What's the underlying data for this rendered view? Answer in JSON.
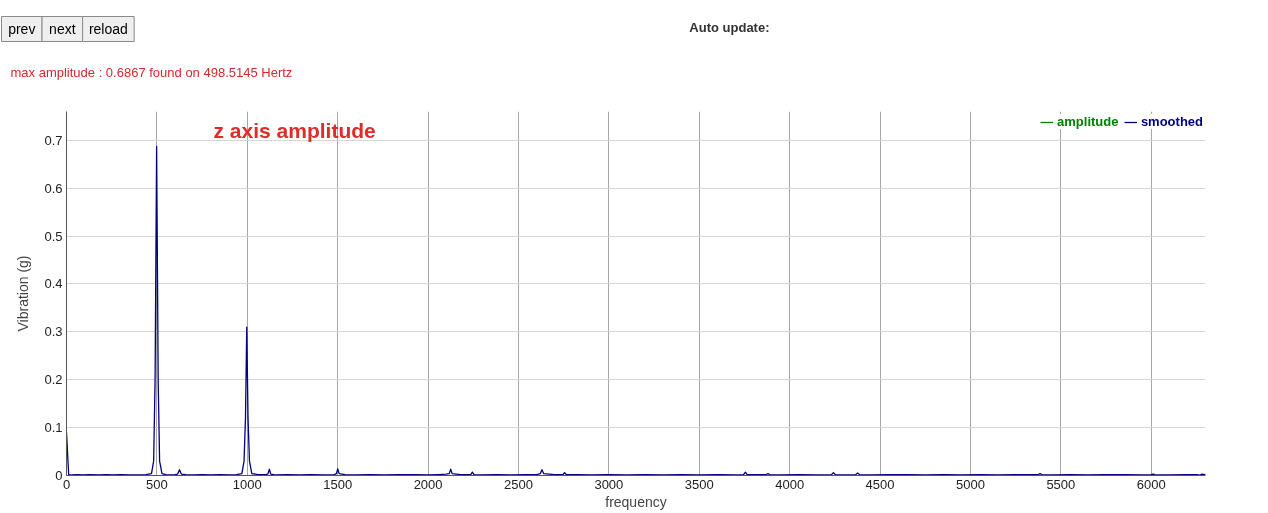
{
  "chart_data": {
    "type": "line",
    "xlabel": "frequency",
    "ylabel": "Vibration (g)",
    "x": [
      0,
      12,
      30,
      60,
      90,
      130,
      180,
      220,
      260,
      300,
      350,
      400,
      440,
      470,
      482,
      490,
      498.5,
      507,
      515,
      528,
      560,
      600,
      615,
      625,
      635,
      660,
      700,
      750,
      800,
      850,
      900,
      940,
      970,
      982,
      990,
      997,
      1004,
      1012,
      1025,
      1060,
      1100,
      1114,
      1122,
      1130,
      1160,
      1220,
      1290,
      1350,
      1420,
      1480,
      1493,
      1500,
      1508,
      1540,
      1600,
      1680,
      1760,
      1840,
      1920,
      2000,
      2060,
      2100,
      2117,
      2125,
      2133,
      2180,
      2236,
      2245,
      2254,
      2300,
      2380,
      2460,
      2540,
      2600,
      2621,
      2630,
      2639,
      2700,
      2746,
      2755,
      2764,
      2820,
      2900,
      3000,
      3100,
      3200,
      3300,
      3400,
      3500,
      3600,
      3700,
      3745,
      3755,
      3765,
      3820,
      3870,
      3880,
      3890,
      3950,
      4050,
      4150,
      4232,
      4242,
      4252,
      4320,
      4366,
      4376,
      4386,
      4450,
      4550,
      4650,
      4750,
      4850,
      4950,
      5050,
      5150,
      5250,
      5350,
      5375,
      5385,
      5395,
      5450,
      5550,
      5650,
      5750,
      5850,
      5950,
      6000,
      6010,
      6020,
      6100,
      6200,
      6250,
      6270,
      6280,
      6300
    ],
    "series": [
      {
        "name": "amplitude",
        "color": "#008000",
        "values": [
          null,
          null,
          null,
          null,
          null,
          null,
          null,
          null,
          null,
          null,
          null,
          null,
          null,
          null,
          null,
          null,
          null,
          null,
          null,
          null,
          null,
          null,
          null,
          null,
          null,
          null,
          null,
          null,
          null,
          null,
          null,
          null,
          null,
          null,
          null,
          null,
          null,
          null,
          null,
          null,
          null,
          null,
          null,
          null,
          null,
          null,
          null,
          null,
          null,
          null,
          null,
          null,
          null,
          null,
          null,
          null,
          null,
          null,
          null,
          null,
          null,
          null,
          null,
          null,
          null,
          null,
          null,
          null,
          null,
          null,
          null,
          null,
          null,
          null,
          null,
          null,
          null,
          null,
          null,
          null,
          null,
          null,
          null,
          null,
          null,
          null,
          null,
          null,
          null,
          null,
          null,
          null,
          null,
          null,
          null,
          null,
          null,
          null,
          null,
          null,
          null,
          null,
          null,
          null,
          null,
          null,
          null,
          null,
          null,
          null,
          null,
          null,
          null,
          null,
          null,
          null,
          null,
          null,
          null,
          null,
          null,
          null,
          null,
          null,
          null,
          null,
          null,
          null,
          null,
          null,
          null,
          null,
          null,
          null,
          null,
          null
        ]
      },
      {
        "name": "smoothed",
        "color": "#000080",
        "values": [
          0.09,
          0.002,
          0.001,
          0.002,
          0.001,
          0.002,
          0.001,
          0.002,
          0.001,
          0.002,
          0.001,
          0.001,
          0.002,
          0.004,
          0.03,
          0.2,
          0.687,
          0.2,
          0.03,
          0.004,
          0.001,
          0.002,
          0.003,
          0.012,
          0.003,
          0.002,
          0.001,
          0.002,
          0.001,
          0.002,
          0.001,
          0.002,
          0.004,
          0.03,
          0.12,
          0.31,
          0.12,
          0.03,
          0.004,
          0.002,
          0.002,
          0.003,
          0.013,
          0.003,
          0.001,
          0.002,
          0.001,
          0.002,
          0.001,
          0.002,
          0.004,
          0.014,
          0.004,
          0.002,
          0.001,
          0.002,
          0.001,
          0.002,
          0.002,
          0.001,
          0.002,
          0.003,
          0.004,
          0.013,
          0.004,
          0.002,
          0.002,
          0.007,
          0.002,
          0.001,
          0.002,
          0.001,
          0.002,
          0.002,
          0.004,
          0.012,
          0.004,
          0.002,
          0.002,
          0.006,
          0.002,
          0.002,
          0.001,
          0.002,
          0.001,
          0.002,
          0.001,
          0.002,
          0.001,
          0.002,
          0.001,
          0.002,
          0.007,
          0.002,
          0.002,
          0.002,
          0.004,
          0.002,
          0.001,
          0.002,
          0.001,
          0.002,
          0.006,
          0.002,
          0.001,
          0.002,
          0.005,
          0.002,
          0.001,
          0.002,
          0.002,
          0.001,
          0.002,
          0.001,
          0.002,
          0.001,
          0.002,
          0.002,
          0.002,
          0.004,
          0.002,
          0.001,
          0.002,
          0.001,
          0.002,
          0.002,
          0.001,
          0.002,
          0.003,
          0.002,
          0.001,
          0.002,
          0.002,
          0.001,
          0.003,
          0.002
        ]
      }
    ],
    "xlim": [
      0,
      6300
    ],
    "xticks": [
      0,
      500,
      1000,
      1500,
      2000,
      2500,
      3000,
      3500,
      4000,
      4500,
      5000,
      5500,
      6000
    ],
    "ylim": [
      0,
      0.76
    ],
    "yticks": [
      0,
      0.1,
      0.2,
      0.3,
      0.4,
      0.5,
      0.6,
      0.7
    ],
    "grid": true,
    "legend": "top right",
    "annotations": [
      "prev",
      "next",
      "reload",
      "Auto update:",
      "max amplitude : 0.6867 found on 498.5145 Hertz",
      "z axis amplitude"
    ]
  }
}
